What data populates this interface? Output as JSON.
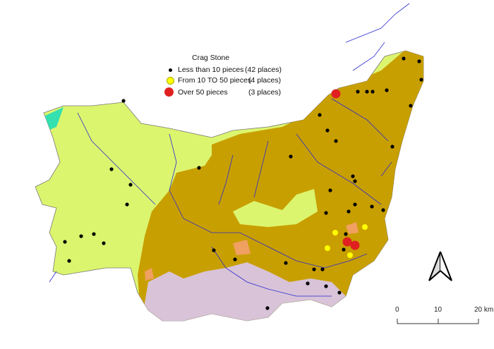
{
  "legend": {
    "title": "Crag Stone",
    "items": [
      {
        "label": "Less than 10 pieces",
        "count": "(42 places)",
        "color": "#000000"
      },
      {
        "label": "From 10 TO 50 pieces",
        "count": "(4 places)",
        "color": "#ffff00"
      },
      {
        "label": "Over 50 pieces",
        "count": "(3 places)",
        "color": "#e02020"
      }
    ]
  },
  "scale_bar": {
    "labels": [
      "0",
      "10",
      "20 km"
    ]
  },
  "north_arrow": {
    "icon": "north-arrow-icon"
  },
  "colors": {
    "crag_area": "#c89f00",
    "other_area": "#dcf56e",
    "lavender_area": "#d8c3d8",
    "orange_area": "#f0a060",
    "rivers": "#2a2ad0"
  }
}
